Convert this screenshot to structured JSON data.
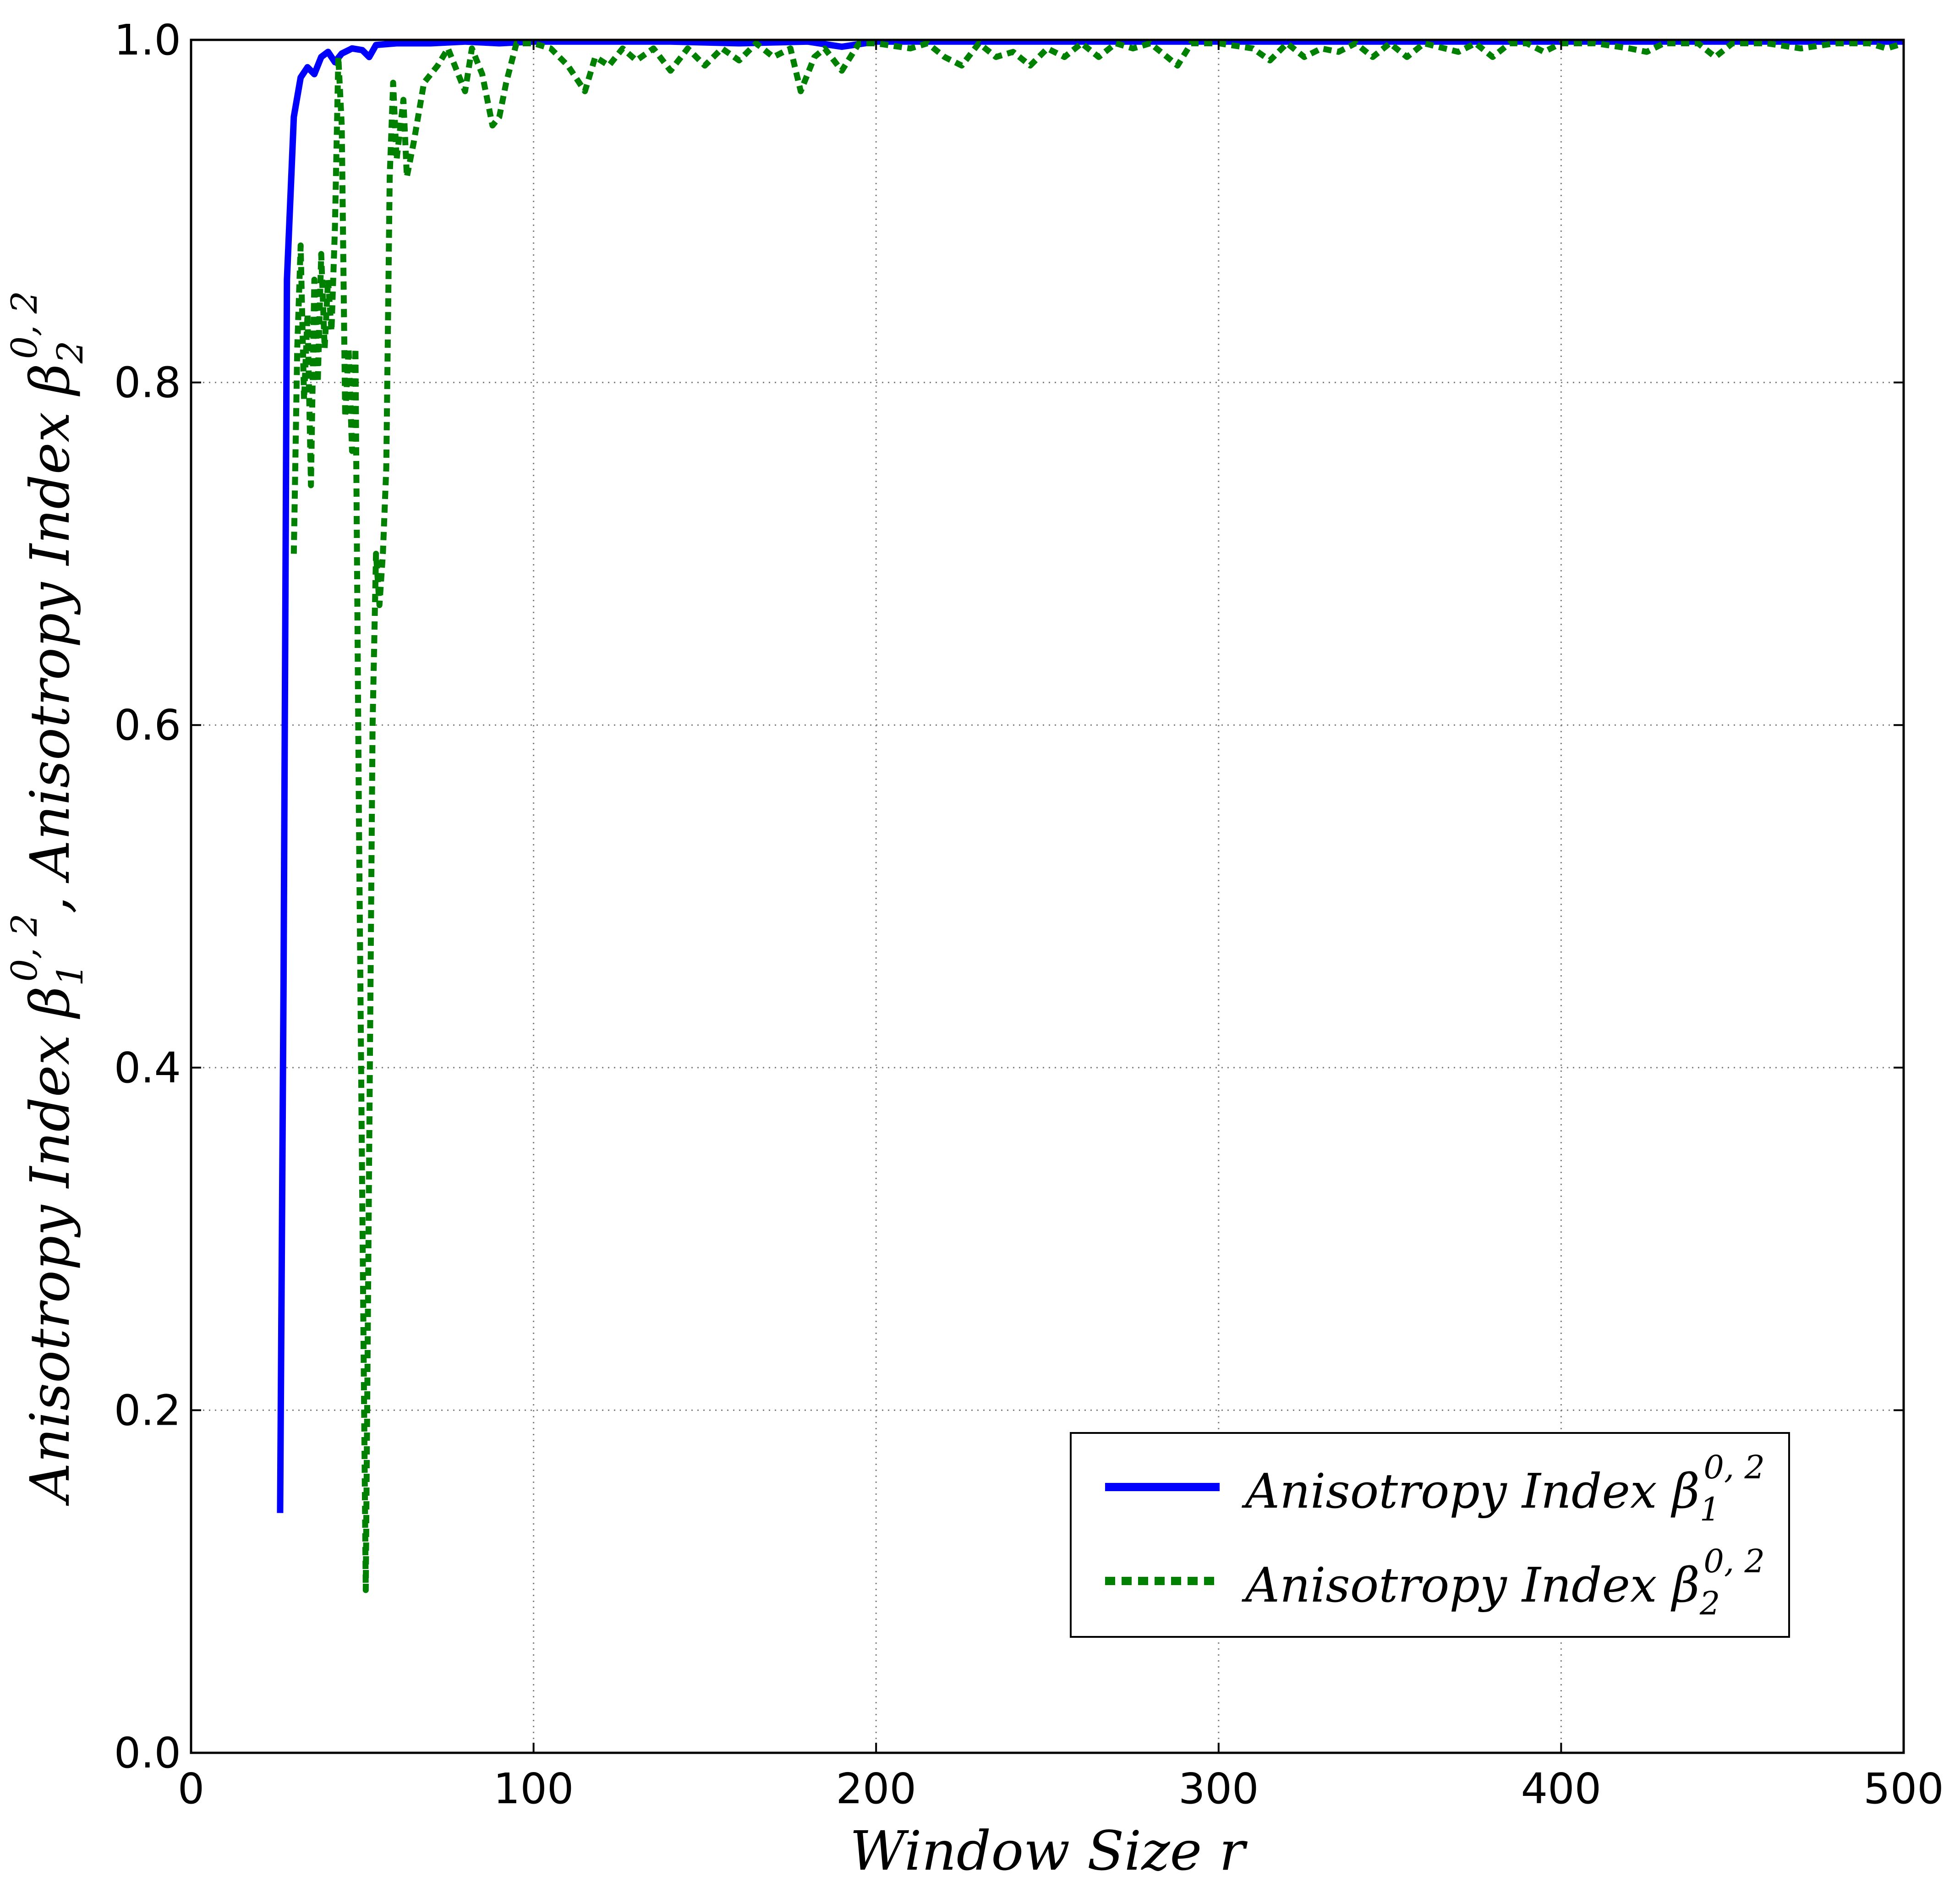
{
  "chart_data": {
    "type": "line",
    "xlabel": "Window Size r",
    "ylabel": "Anisotropy Index β1^{0,2} ,  Anisotropy Index β2^{0,2}",
    "xlim": [
      0,
      500
    ],
    "ylim": [
      0.0,
      1.0
    ],
    "x_ticks": [
      "0",
      "100",
      "200",
      "300",
      "400",
      "500"
    ],
    "y_ticks": [
      "0.0",
      "0.2",
      "0.4",
      "0.6",
      "0.8",
      "1.0"
    ],
    "grid": true,
    "legend_position": "lower-right",
    "series": [
      {
        "name": "Anisotropy Index β1^{0,2}",
        "color": "#0000ff",
        "style": "solid",
        "points": [
          [
            26,
            0.14
          ],
          [
            27,
            0.45
          ],
          [
            28,
            0.86
          ],
          [
            30,
            0.955
          ],
          [
            32,
            0.978
          ],
          [
            34,
            0.984
          ],
          [
            36,
            0.98
          ],
          [
            38,
            0.99
          ],
          [
            40,
            0.993
          ],
          [
            42,
            0.987
          ],
          [
            44,
            0.992
          ],
          [
            47,
            0.995
          ],
          [
            50,
            0.994
          ],
          [
            52,
            0.99
          ],
          [
            54,
            0.997
          ],
          [
            60,
            0.998
          ],
          [
            70,
            0.998
          ],
          [
            80,
            0.999
          ],
          [
            90,
            0.998
          ],
          [
            100,
            0.999
          ],
          [
            120,
            0.999
          ],
          [
            140,
            0.999
          ],
          [
            160,
            0.998
          ],
          [
            180,
            0.999
          ],
          [
            190,
            0.996
          ],
          [
            200,
            0.999
          ],
          [
            250,
            0.999
          ],
          [
            300,
            0.999
          ],
          [
            350,
            0.999
          ],
          [
            400,
            0.999
          ],
          [
            450,
            0.999
          ],
          [
            500,
            0.999
          ]
        ]
      },
      {
        "name": "Anisotropy Index β2^{0,2}",
        "color": "#008000",
        "style": "dashed",
        "points": [
          [
            30,
            0.7
          ],
          [
            31,
            0.82
          ],
          [
            32,
            0.88
          ],
          [
            33,
            0.79
          ],
          [
            34,
            0.84
          ],
          [
            35,
            0.74
          ],
          [
            36,
            0.86
          ],
          [
            37,
            0.8
          ],
          [
            38,
            0.875
          ],
          [
            39,
            0.82
          ],
          [
            40,
            0.86
          ],
          [
            41,
            0.83
          ],
          [
            42,
            0.89
          ],
          [
            43,
            0.99
          ],
          [
            44,
            0.95
          ],
          [
            45,
            0.78
          ],
          [
            46,
            0.82
          ],
          [
            47,
            0.76
          ],
          [
            48,
            0.82
          ],
          [
            49,
            0.55
          ],
          [
            50,
            0.32
          ],
          [
            51,
            0.095
          ],
          [
            52,
            0.35
          ],
          [
            53,
            0.6
          ],
          [
            54,
            0.7
          ],
          [
            55,
            0.67
          ],
          [
            56,
            0.7
          ],
          [
            57,
            0.75
          ],
          [
            58,
            0.92
          ],
          [
            59,
            0.975
          ],
          [
            60,
            0.93
          ],
          [
            62,
            0.965
          ],
          [
            63,
            0.92
          ],
          [
            65,
            0.94
          ],
          [
            68,
            0.975
          ],
          [
            72,
            0.985
          ],
          [
            75,
            0.995
          ],
          [
            78,
            0.98
          ],
          [
            80,
            0.97
          ],
          [
            82,
            0.995
          ],
          [
            85,
            0.98
          ],
          [
            88,
            0.95
          ],
          [
            90,
            0.955
          ],
          [
            92,
            0.975
          ],
          [
            95,
            0.998
          ],
          [
            100,
            0.998
          ],
          [
            105,
            0.995
          ],
          [
            110,
            0.985
          ],
          [
            115,
            0.97
          ],
          [
            118,
            0.99
          ],
          [
            122,
            0.985
          ],
          [
            126,
            0.995
          ],
          [
            130,
            0.988
          ],
          [
            135,
            0.995
          ],
          [
            140,
            0.982
          ],
          [
            145,
            0.995
          ],
          [
            150,
            0.985
          ],
          [
            155,
            0.995
          ],
          [
            160,
            0.988
          ],
          [
            165,
            0.998
          ],
          [
            170,
            0.99
          ],
          [
            175,
            0.995
          ],
          [
            178,
            0.97
          ],
          [
            182,
            0.99
          ],
          [
            185,
            0.995
          ],
          [
            190,
            0.982
          ],
          [
            195,
            0.998
          ],
          [
            200,
            0.998
          ],
          [
            210,
            0.995
          ],
          [
            215,
            0.998
          ],
          [
            220,
            0.99
          ],
          [
            225,
            0.985
          ],
          [
            230,
            0.998
          ],
          [
            235,
            0.99
          ],
          [
            240,
            0.993
          ],
          [
            245,
            0.985
          ],
          [
            250,
            0.995
          ],
          [
            255,
            0.99
          ],
          [
            260,
            0.998
          ],
          [
            265,
            0.99
          ],
          [
            270,
            0.998
          ],
          [
            275,
            0.995
          ],
          [
            280,
            0.998
          ],
          [
            285,
            0.99
          ],
          [
            288,
            0.985
          ],
          [
            292,
            0.998
          ],
          [
            300,
            0.998
          ],
          [
            310,
            0.995
          ],
          [
            315,
            0.988
          ],
          [
            320,
            0.998
          ],
          [
            325,
            0.99
          ],
          [
            330,
            0.995
          ],
          [
            335,
            0.993
          ],
          [
            340,
            0.998
          ],
          [
            345,
            0.99
          ],
          [
            350,
            0.998
          ],
          [
            355,
            0.99
          ],
          [
            360,
            0.998
          ],
          [
            370,
            0.993
          ],
          [
            375,
            0.998
          ],
          [
            380,
            0.99
          ],
          [
            385,
            0.998
          ],
          [
            390,
            0.998
          ],
          [
            395,
            0.993
          ],
          [
            400,
            0.998
          ],
          [
            410,
            0.998
          ],
          [
            420,
            0.995
          ],
          [
            425,
            0.993
          ],
          [
            430,
            0.998
          ],
          [
            440,
            0.998
          ],
          [
            445,
            0.99
          ],
          [
            450,
            0.998
          ],
          [
            460,
            0.998
          ],
          [
            470,
            0.995
          ],
          [
            480,
            0.998
          ],
          [
            490,
            0.998
          ],
          [
            495,
            0.995
          ],
          [
            500,
            0.998
          ]
        ]
      }
    ]
  }
}
